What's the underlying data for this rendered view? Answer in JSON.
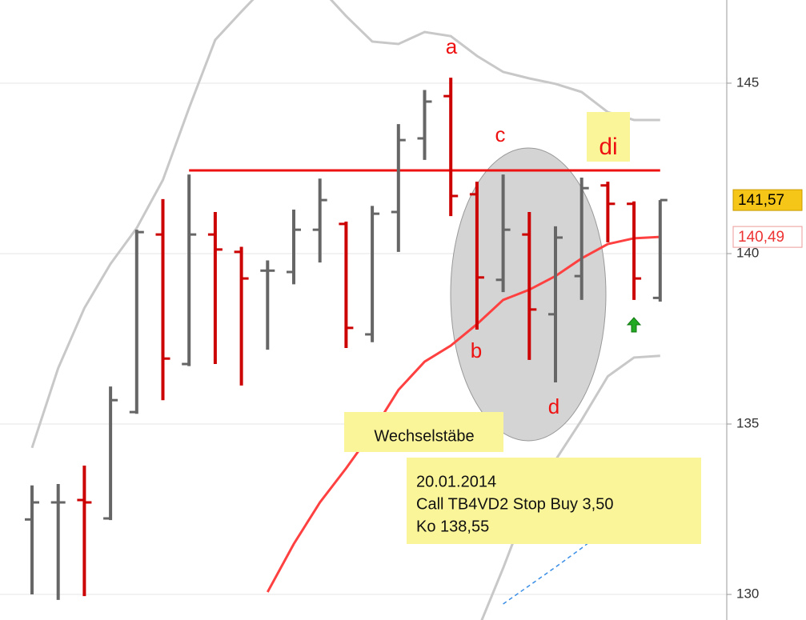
{
  "chart_data": {
    "type": "ohlc",
    "open": [
      132.2,
      132.7,
      132.77,
      132.23,
      135.35,
      140.56,
      136.76,
      140.56,
      140.05,
      139.5,
      139.46,
      140.7,
      140.87,
      137.63,
      141.22,
      143.38,
      144.62,
      141.74,
      139.23,
      140.56,
      138.22,
      139.34,
      142.0,
      141.46,
      138.7
    ],
    "high": [
      133.2,
      133.24,
      133.78,
      136.1,
      140.7,
      141.6,
      142.32,
      141.22,
      140.2,
      139.8,
      141.29,
      142.2,
      140.94,
      141.4,
      143.8,
      144.8,
      145.16,
      142.11,
      142.32,
      141.22,
      140.8,
      142.23,
      142.11,
      141.53,
      141.57
    ],
    "low": [
      130.0,
      129.84,
      129.95,
      132.18,
      135.3,
      135.7,
      136.7,
      136.76,
      136.13,
      137.18,
      139.1,
      139.74,
      137.23,
      137.4,
      140.05,
      142.75,
      141.1,
      137.77,
      138.87,
      136.88,
      136.22,
      138.64,
      140.33,
      138.64,
      138.59
    ],
    "close": [
      132.7,
      132.7,
      132.7,
      135.7,
      140.63,
      136.92,
      140.56,
      140.12,
      139.27,
      139.5,
      140.7,
      141.57,
      137.82,
      141.17,
      143.33,
      144.46,
      141.69,
      139.3,
      140.7,
      138.36,
      140.47,
      141.92,
      141.46,
      139.27,
      141.57
    ],
    "up_color": "#666666",
    "down_color": "#cc0000",
    "lines": [
      {
        "color": "#ff4040",
        "style": "solid",
        "values": [
          null,
          null,
          null,
          null,
          null,
          null,
          null,
          null,
          null,
          130.07,
          131.48,
          132.7,
          133.7,
          134.77,
          136.0,
          136.83,
          137.3,
          137.93,
          138.64,
          138.94,
          139.34,
          139.86,
          140.28,
          140.45,
          140.49
        ]
      },
      {
        "color": "#c8c8c8",
        "style": "solid",
        "values": [
          134.3,
          136.64,
          138.4,
          139.7,
          140.75,
          142.16,
          144.27,
          146.27,
          147.1,
          147.9,
          148.0,
          147.8,
          146.97,
          146.22,
          146.15,
          146.5,
          146.38,
          145.8,
          145.33,
          145.14,
          144.98,
          144.74,
          144.15,
          143.92,
          143.92
        ]
      },
      {
        "color": "#c8c8c8",
        "style": "solid",
        "values": [
          null,
          null,
          null,
          null,
          null,
          null,
          null,
          null,
          null,
          null,
          null,
          null,
          null,
          null,
          null,
          null,
          null,
          128.9,
          130.77,
          132.77,
          133.94,
          135.12,
          136.4,
          136.95,
          137.0
        ]
      },
      {
        "color": "#3a8ee6",
        "style": "dashed",
        "values": [
          null,
          null,
          null,
          null,
          null,
          null,
          null,
          null,
          null,
          null,
          null,
          null,
          null,
          null,
          null,
          null,
          null,
          null,
          129.72,
          130.26,
          130.8,
          131.36,
          131.95,
          132.49,
          133.05
        ]
      }
    ],
    "resistance": 142.44,
    "resistance_color": "#ee1111",
    "ylim": [
      129.25,
      147.44
    ],
    "yticks": [
      130,
      135,
      140,
      145
    ],
    "grid": true,
    "price_tags": [
      {
        "value": 141.57,
        "label": "141,57"
      },
      {
        "value": 140.49,
        "label": "140,49"
      }
    ],
    "annotations": [
      "a",
      "b",
      "c",
      "d",
      "di",
      "Wechselstäbe"
    ],
    "note": [
      "20.01.2014",
      "Call TB4VD2 Stop Buy 3,50",
      "Ko 138,55"
    ]
  }
}
